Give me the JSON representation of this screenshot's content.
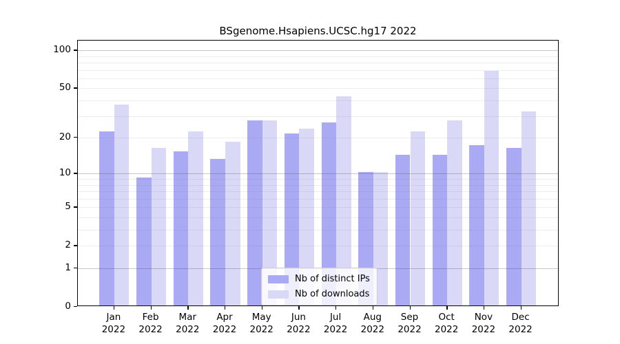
{
  "title": "BSgenome.Hsapiens.UCSC.hg17 2022",
  "chart_data": {
    "type": "bar",
    "categories": [
      "Jan",
      "Feb",
      "Mar",
      "Apr",
      "May",
      "Jun",
      "Jul",
      "Aug",
      "Sep",
      "Oct",
      "Nov",
      "Dec"
    ],
    "year": "2022",
    "series": [
      {
        "name": "Nb of distinct IPs",
        "color": "#a9a9f4",
        "values": [
          22,
          9,
          15,
          13,
          27,
          21,
          26,
          10,
          14,
          14,
          17,
          16
        ]
      },
      {
        "name": "Nb of downloads",
        "color": "#d9d9f7",
        "values": [
          36,
          16,
          22,
          18,
          27,
          23,
          42,
          10,
          22,
          27,
          67,
          32
        ]
      }
    ],
    "yscale": "log1p",
    "ytick_labels": [
      100,
      50,
      20,
      10,
      5,
      2,
      1,
      0
    ],
    "minor_gridlines": [
      2,
      3,
      4,
      5,
      6,
      7,
      8,
      9,
      20,
      30,
      40,
      50,
      60,
      70,
      80,
      90
    ],
    "major_gridlines": [
      1,
      10,
      100
    ],
    "ylim": [
      0,
      118
    ],
    "grid": true,
    "legend_position": "bottom-center",
    "background_color": "#ffffff",
    "axis_color": "#000000"
  }
}
